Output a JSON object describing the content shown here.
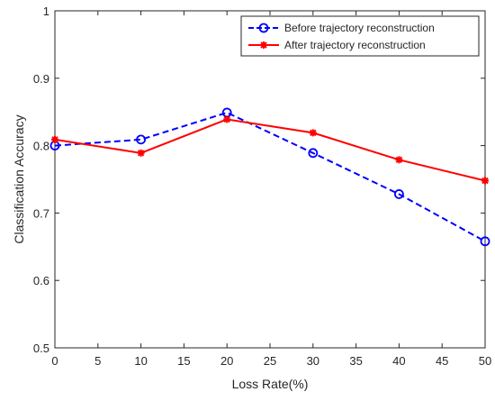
{
  "chart_data": {
    "type": "line",
    "title": "",
    "xlabel": "Loss Rate(%)",
    "ylabel": "Classification Accuracy",
    "xlim": [
      0,
      50
    ],
    "ylim": [
      0.5,
      1
    ],
    "xticks": [
      0,
      5,
      10,
      15,
      20,
      25,
      30,
      35,
      40,
      45,
      50
    ],
    "yticks": [
      0.5,
      0.6,
      0.7,
      0.8,
      0.9,
      1
    ],
    "ytick_labels": [
      "0.5",
      "0.6",
      "0.7",
      "0.8",
      "0.9",
      "1"
    ],
    "grid": false,
    "legend_position": "top-right",
    "x": [
      0,
      10,
      20,
      30,
      40,
      50
    ],
    "series": [
      {
        "name": "Before trajectory reconstruction",
        "values": [
          0.8,
          0.809,
          0.849,
          0.789,
          0.728,
          0.658
        ],
        "color": "#0000ff",
        "line_style": "dashed",
        "marker": "circle"
      },
      {
        "name": "After trajectory reconstruction",
        "values": [
          0.809,
          0.789,
          0.839,
          0.819,
          0.779,
          0.748
        ],
        "color": "#ff0000",
        "line_style": "solid",
        "marker": "asterisk"
      }
    ]
  }
}
